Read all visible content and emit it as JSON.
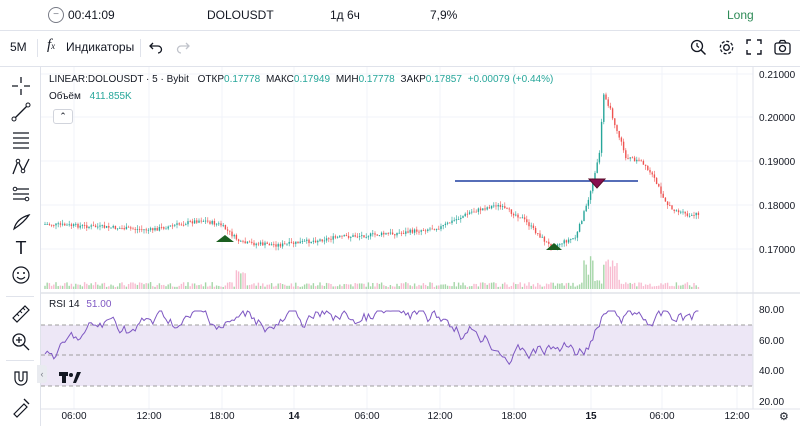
{
  "infobar": {
    "time": "00:41:09",
    "symbol": "DOLOUSDT",
    "duration": "1д 6ч",
    "percent": "7,9%",
    "direction": "Long"
  },
  "toolbar": {
    "interval": "5M",
    "indicators_label": "Индикаторы"
  },
  "legend": {
    "symbol_line": "LINEAR:DOLOUSDT · 5 · Bybit",
    "open_label": "ОТКР",
    "open": "0.17778",
    "high_label": "МАКС",
    "high": "0.17949",
    "low_label": "МИН",
    "low": "0.17778",
    "close_label": "ЗАКР",
    "close": "0.17857",
    "change": "+0.00079 (+0.44%)",
    "volume_label": "Объём",
    "volume": "411.855K"
  },
  "rsi": {
    "label": "RSI 14",
    "value": "51.00",
    "upper": 70,
    "middle": 50,
    "lower": 30
  },
  "price_axis": [
    "0.21000",
    "0.20000",
    "0.19000",
    "0.18000",
    "0.17000"
  ],
  "rsi_axis": [
    "80.00",
    "60.00",
    "40.00",
    "20.00"
  ],
  "time_axis": [
    "06:00",
    "12:00",
    "18:00",
    "14",
    "06:00",
    "12:00",
    "18:00",
    "15",
    "06:00",
    "12:00"
  ],
  "colors": {
    "up": "#26a69a",
    "down": "#ef5350",
    "rsi_line": "#7e57c2",
    "rsi_band": "#ede7f6",
    "hline": "#1e3fa0",
    "buy_marker": "#1b5e20",
    "sell_marker": "#880e4f"
  },
  "icons": {
    "crosshair": "crosshair-icon",
    "trendline": "trendline-icon",
    "fib": "fib-icon",
    "pattern": "pattern-icon",
    "brush": "brush-icon",
    "text": "text-icon",
    "emoji": "emoji-icon",
    "ruler": "ruler-icon",
    "zoom": "zoom-icon",
    "magnet": "magnet-icon",
    "lock": "lock-draw-icon"
  }
}
